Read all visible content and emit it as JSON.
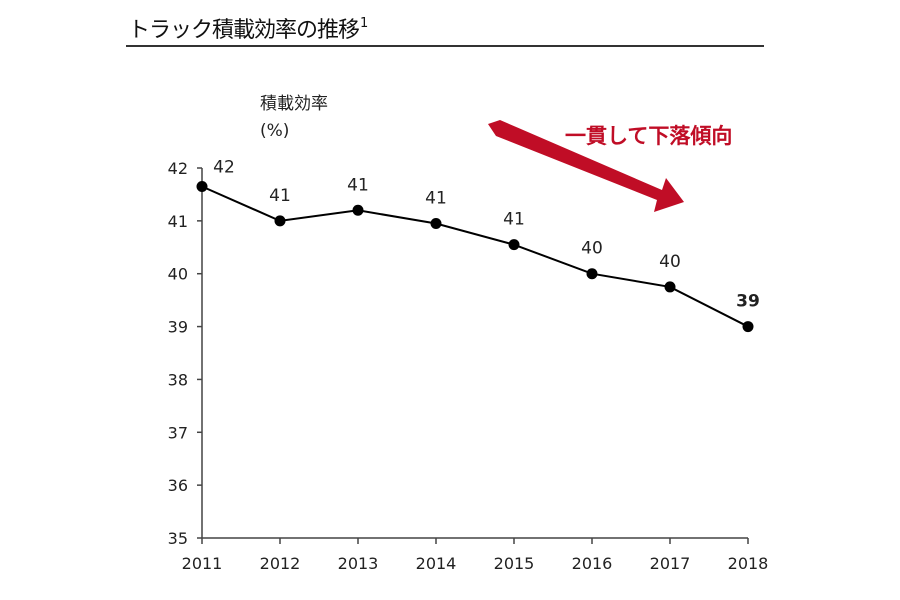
{
  "title": {
    "text": "トラック積載効率の推移",
    "footnote": "1"
  },
  "annotation": {
    "text": "一貫して下落傾向",
    "color": "#c00d26"
  },
  "chart_data": {
    "type": "line",
    "title": "トラック積載効率の推移",
    "xlabel": "",
    "ylabel": [
      "積載効率",
      "(%)"
    ],
    "x": [
      "2011",
      "2012",
      "2013",
      "2014",
      "2015",
      "2016",
      "2017",
      "2018"
    ],
    "series": [
      {
        "name": "積載効率",
        "values": [
          41.65,
          41.0,
          41.2,
          40.95,
          40.55,
          40.0,
          39.75,
          39.0
        ],
        "labels": [
          "42",
          "41",
          "41",
          "41",
          "41",
          "40",
          "40",
          "39"
        ],
        "color": "#000000"
      }
    ],
    "ylim": [
      35,
      42
    ],
    "yticks": [
      "35",
      "36",
      "37",
      "38",
      "39",
      "40",
      "41",
      "42"
    ],
    "grid": false,
    "legend": "none",
    "highlight_last_label": true
  }
}
